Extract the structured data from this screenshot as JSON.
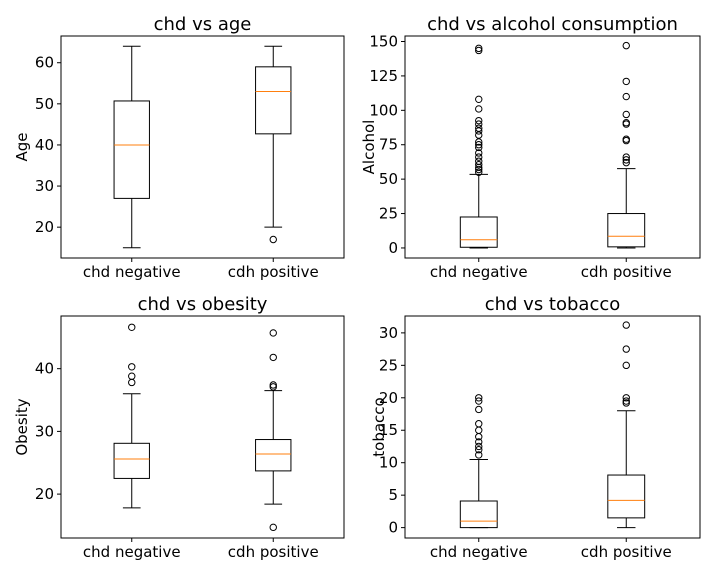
{
  "chart_data": [
    {
      "type": "box",
      "title": "chd vs age",
      "xlabel": "",
      "ylabel": "Age",
      "categories": [
        "chd negative",
        "cdh positive"
      ],
      "ylim": [
        12.5,
        66.5
      ],
      "yticks": [
        20,
        30,
        40,
        50,
        60
      ],
      "boxes": [
        {
          "whislo": 15,
          "q1": 27,
          "med": 40,
          "q3": 50.7,
          "whishi": 64,
          "fliers": []
        },
        {
          "whislo": 20,
          "q1": 42.7,
          "med": 53,
          "q3": 59,
          "whishi": 64,
          "fliers": [
            17
          ]
        }
      ]
    },
    {
      "type": "box",
      "title": "chd vs alcohol consumption",
      "xlabel": "",
      "ylabel": "Alcohol",
      "categories": [
        "chd negative",
        "cdh positive"
      ],
      "ylim": [
        -7.3,
        154.0
      ],
      "yticks": [
        0,
        25,
        50,
        75,
        100,
        125,
        150
      ],
      "boxes": [
        {
          "whislo": 0,
          "q1": 0.5,
          "med": 6,
          "q3": 22.5,
          "whishi": 53.5,
          "fliers": [
            55,
            57,
            58.5,
            60.5,
            63,
            66,
            69,
            73,
            75,
            77,
            82,
            85,
            87,
            90,
            92.5,
            101,
            108,
            143.5,
            145
          ]
        },
        {
          "whislo": 0,
          "q1": 0.8,
          "med": 8.5,
          "q3": 25,
          "whishi": 57.6,
          "fliers": [
            62,
            64,
            66,
            78,
            79,
            90,
            91,
            97,
            110,
            121,
            147
          ]
        }
      ]
    },
    {
      "type": "box",
      "title": "chd vs obesity",
      "xlabel": "",
      "ylabel": "Obesity",
      "categories": [
        "chd negative",
        "cdh positive"
      ],
      "ylim": [
        13.0,
        48.4
      ],
      "yticks": [
        20,
        30,
        40
      ],
      "boxes": [
        {
          "whislo": 17.8,
          "q1": 22.5,
          "med": 25.6,
          "q3": 28.1,
          "whishi": 36,
          "fliers": [
            37.8,
            38.8,
            40.3,
            46.6
          ]
        },
        {
          "whislo": 18.4,
          "q1": 23.7,
          "med": 26.4,
          "q3": 28.7,
          "whishi": 36.5,
          "fliers": [
            37.1,
            37.4,
            41.8,
            45.7,
            14.7
          ]
        }
      ]
    },
    {
      "type": "box",
      "title": "chd vs tobacco",
      "xlabel": "",
      "ylabel": "tobacco",
      "categories": [
        "chd negative",
        "cdh positive"
      ],
      "ylim": [
        -1.6,
        32.6
      ],
      "yticks": [
        0,
        5,
        10,
        15,
        20,
        25,
        30
      ],
      "boxes": [
        {
          "whislo": 0,
          "q1": 0,
          "med": 1,
          "q3": 4.1,
          "whishi": 10.5,
          "fliers": [
            11.2,
            12,
            12.5,
            13.2,
            14,
            15,
            16,
            18.2,
            19.5,
            20
          ]
        },
        {
          "whislo": 0,
          "q1": 1.5,
          "med": 4.2,
          "q3": 8.1,
          "whishi": 18,
          "fliers": [
            19.2,
            19.5,
            20,
            25,
            27.5,
            31.2
          ]
        }
      ]
    }
  ],
  "style": {
    "box_color": "#000000",
    "median_color": "#ff7f0e",
    "flier_color": "#000000"
  }
}
